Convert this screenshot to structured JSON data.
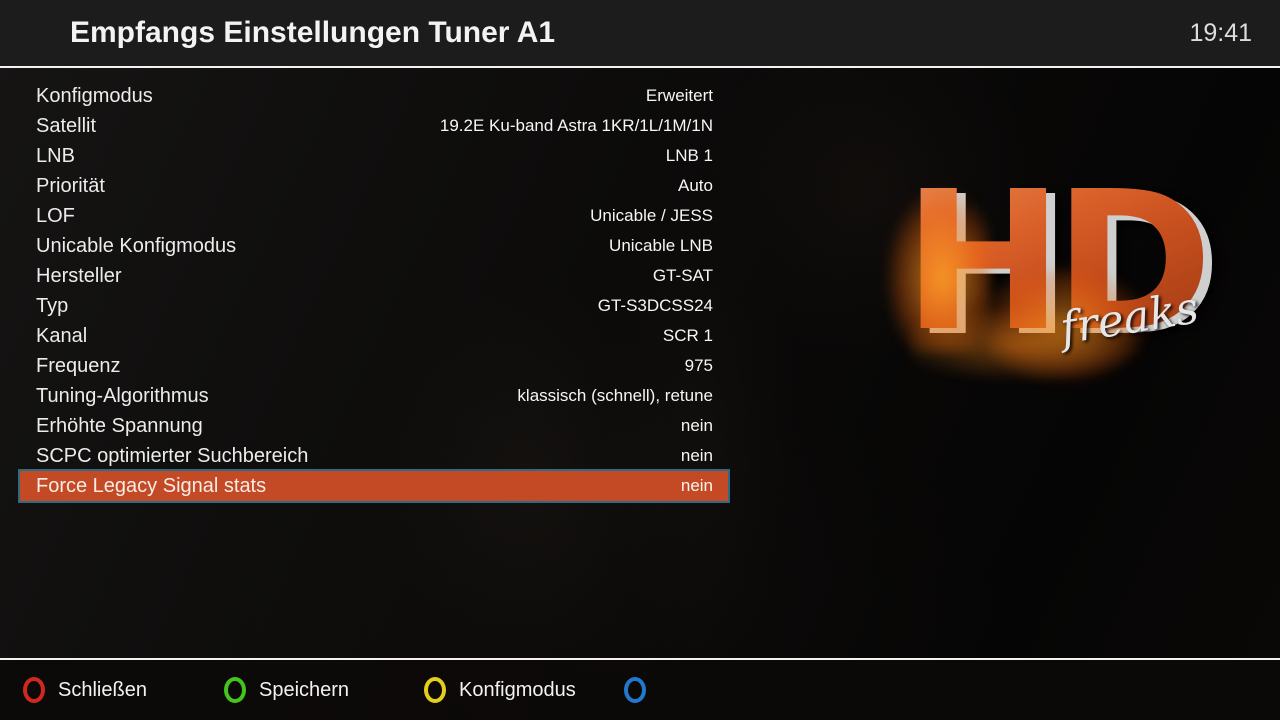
{
  "header": {
    "title": "Empfangs Einstellungen Tuner A1",
    "clock": "19:41"
  },
  "settings": {
    "selected_index": 13,
    "rows": [
      {
        "label": "Konfigmodus",
        "value": "Erweitert"
      },
      {
        "label": "Satellit",
        "value": "19.2E Ku-band Astra 1KR/1L/1M/1N"
      },
      {
        "label": "LNB",
        "value": "LNB 1"
      },
      {
        "label": "Priorität",
        "value": "Auto"
      },
      {
        "label": "LOF",
        "value": "Unicable / JESS"
      },
      {
        "label": "Unicable Konfigmodus",
        "value": "Unicable LNB"
      },
      {
        "label": "Hersteller",
        "value": "GT-SAT"
      },
      {
        "label": "Typ",
        "value": "GT-S3DCSS24"
      },
      {
        "label": "Kanal",
        "value": "SCR 1"
      },
      {
        "label": "Frequenz",
        "value": "975"
      },
      {
        "label": "Tuning-Algorithmus",
        "value": "klassisch (schnell), retune"
      },
      {
        "label": "Erhöhte Spannung",
        "value": "nein"
      },
      {
        "label": "SCPC optimierter Suchbereich",
        "value": "nein"
      },
      {
        "label": "Force Legacy Signal stats",
        "value": "nein"
      }
    ]
  },
  "logo": {
    "text": "HD",
    "subtext": "freaks"
  },
  "footer": {
    "buttons": [
      {
        "name": "close",
        "color": "red",
        "color_hex": "#d0291b",
        "label": "Schließen"
      },
      {
        "name": "save",
        "color": "green",
        "color_hex": "#44c41c",
        "label": "Speichern"
      },
      {
        "name": "konfigmodus",
        "color": "yellow",
        "color_hex": "#e2ce1c",
        "label": "Konfigmodus"
      },
      {
        "name": "blue",
        "color": "blue",
        "color_hex": "#2278cf",
        "label": ""
      }
    ]
  },
  "colors": {
    "highlight_bg": "#c44a26",
    "highlight_border": "#2d6b85",
    "header_bg": "#1d1c1c"
  }
}
